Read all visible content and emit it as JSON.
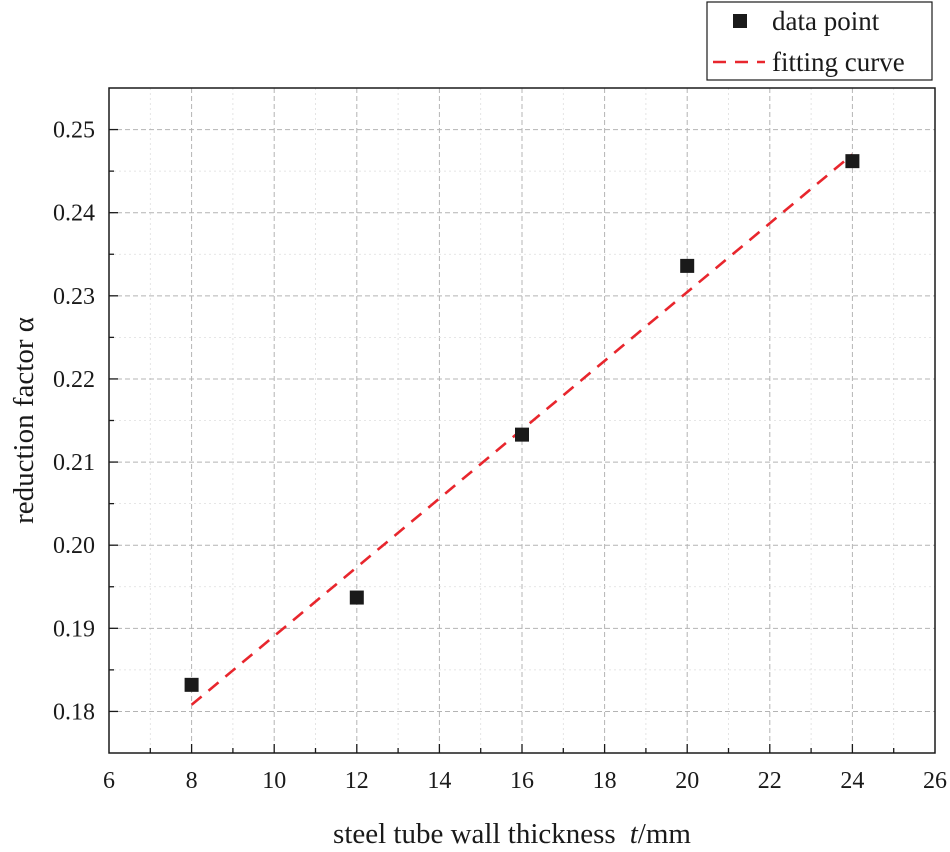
{
  "chart_data": {
    "type": "scatter",
    "xlabel": "steel tube wall thickness",
    "xlabel_var": "t",
    "xlabel_unit": "/mm",
    "ylabel": "reduction factor α",
    "xlim": [
      6,
      26
    ],
    "ylim": [
      0.175,
      0.255
    ],
    "xticks": [
      "6",
      "8",
      "10",
      "12",
      "14",
      "16",
      "18",
      "20",
      "22",
      "24",
      "26"
    ],
    "yticks": [
      "0.18",
      "0.19",
      "0.20",
      "0.21",
      "0.22",
      "0.23",
      "0.24",
      "0.25"
    ],
    "grid": true,
    "legend_position": "top-right-outside",
    "series": [
      {
        "name": "data point",
        "kind": "scatter",
        "marker": "square",
        "color": "#1a1a1a",
        "x": [
          8,
          12,
          16,
          20,
          24
        ],
        "y": [
          0.1832,
          0.1937,
          0.2133,
          0.2336,
          0.2462
        ]
      },
      {
        "name": "fitting curve",
        "kind": "line",
        "style": "dashed",
        "color": "#e8262d",
        "x": [
          8,
          24
        ],
        "y": [
          0.1808,
          0.247
        ]
      }
    ]
  }
}
